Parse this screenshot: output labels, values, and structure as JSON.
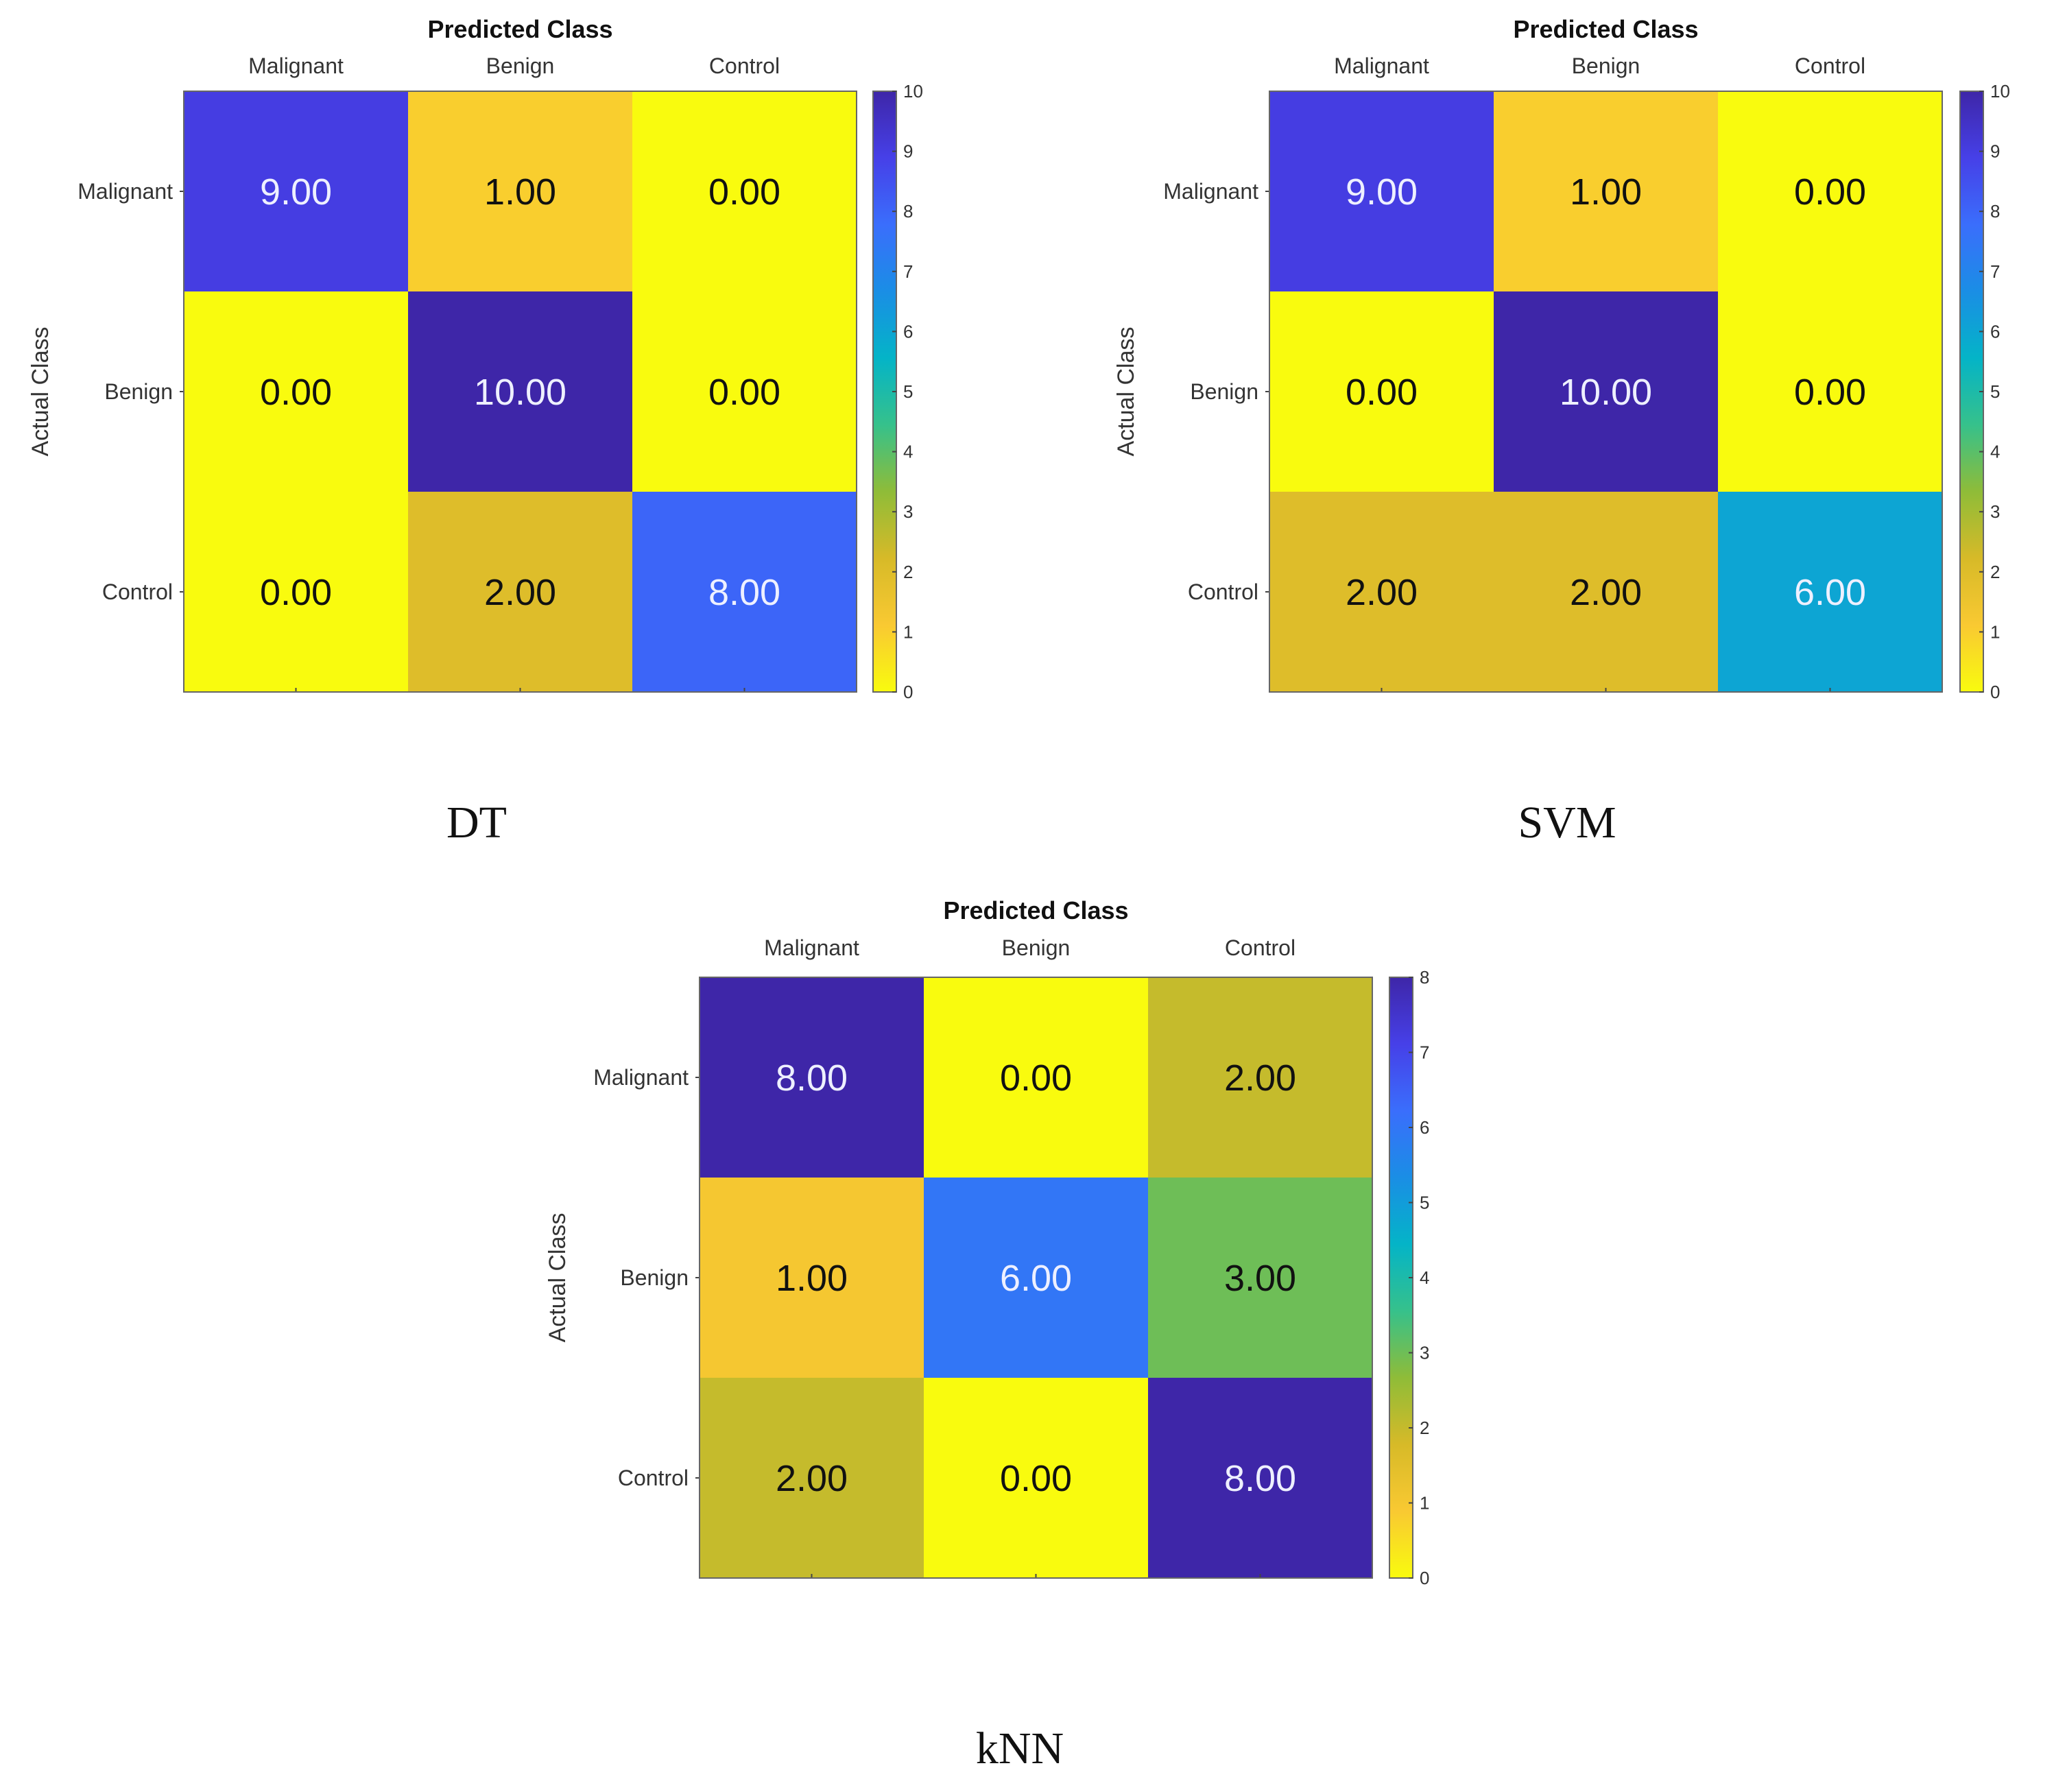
{
  "figure": {
    "colormap_stops": [
      "#f9fb0e",
      "#f9c932",
      "#d7ba28",
      "#8fbc38",
      "#36c18b",
      "#04b4c7",
      "#1a8ee5",
      "#3a6efc",
      "#4640e8",
      "#3e26a8"
    ],
    "light_text_color": "#eef0ff",
    "dark_text_color": "#111111"
  },
  "chart_data": [
    {
      "type": "heatmap",
      "caption": "DT",
      "title": "Predicted Class",
      "ylabel": "Actual Class",
      "col_labels": [
        "Malignant",
        "Benign",
        "Control"
      ],
      "row_labels": [
        "Malignant",
        "Benign",
        "Control"
      ],
      "values": [
        [
          9,
          1,
          0
        ],
        [
          0,
          10,
          0
        ],
        [
          0,
          2,
          8
        ]
      ],
      "cell_text": [
        [
          "9.00",
          "1.00",
          "0.00"
        ],
        [
          "0.00",
          "10.00",
          "0.00"
        ],
        [
          "0.00",
          "2.00",
          "8.00"
        ]
      ],
      "colorbar_range": [
        0,
        10
      ],
      "colorbar_ticks": [
        "0",
        "1",
        "2",
        "3",
        "4",
        "5",
        "6",
        "7",
        "8",
        "9",
        "10"
      ]
    },
    {
      "type": "heatmap",
      "caption": "SVM",
      "title": "Predicted Class",
      "ylabel": "Actual Class",
      "col_labels": [
        "Malignant",
        "Benign",
        "Control"
      ],
      "row_labels": [
        "Malignant",
        "Benign",
        "Control"
      ],
      "values": [
        [
          9,
          1,
          0
        ],
        [
          0,
          10,
          0
        ],
        [
          2,
          2,
          6
        ]
      ],
      "cell_text": [
        [
          "9.00",
          "1.00",
          "0.00"
        ],
        [
          "0.00",
          "10.00",
          "0.00"
        ],
        [
          "2.00",
          "2.00",
          "6.00"
        ]
      ],
      "colorbar_range": [
        0,
        10
      ],
      "colorbar_ticks": [
        "0",
        "1",
        "2",
        "3",
        "4",
        "5",
        "6",
        "7",
        "8",
        "9",
        "10"
      ]
    },
    {
      "type": "heatmap",
      "caption": "kNN",
      "title": "Predicted Class",
      "ylabel": "Actual Class",
      "col_labels": [
        "Malignant",
        "Benign",
        "Control"
      ],
      "row_labels": [
        "Malignant",
        "Benign",
        "Control"
      ],
      "values": [
        [
          8,
          0,
          2
        ],
        [
          1,
          6,
          3
        ],
        [
          2,
          0,
          8
        ]
      ],
      "cell_text": [
        [
          "8.00",
          "0.00",
          "2.00"
        ],
        [
          "1.00",
          "6.00",
          "3.00"
        ],
        [
          "2.00",
          "0.00",
          "8.00"
        ]
      ],
      "colorbar_range": [
        0,
        8
      ],
      "colorbar_ticks": [
        "0",
        "1",
        "2",
        "3",
        "4",
        "5",
        "6",
        "7",
        "8"
      ]
    }
  ]
}
